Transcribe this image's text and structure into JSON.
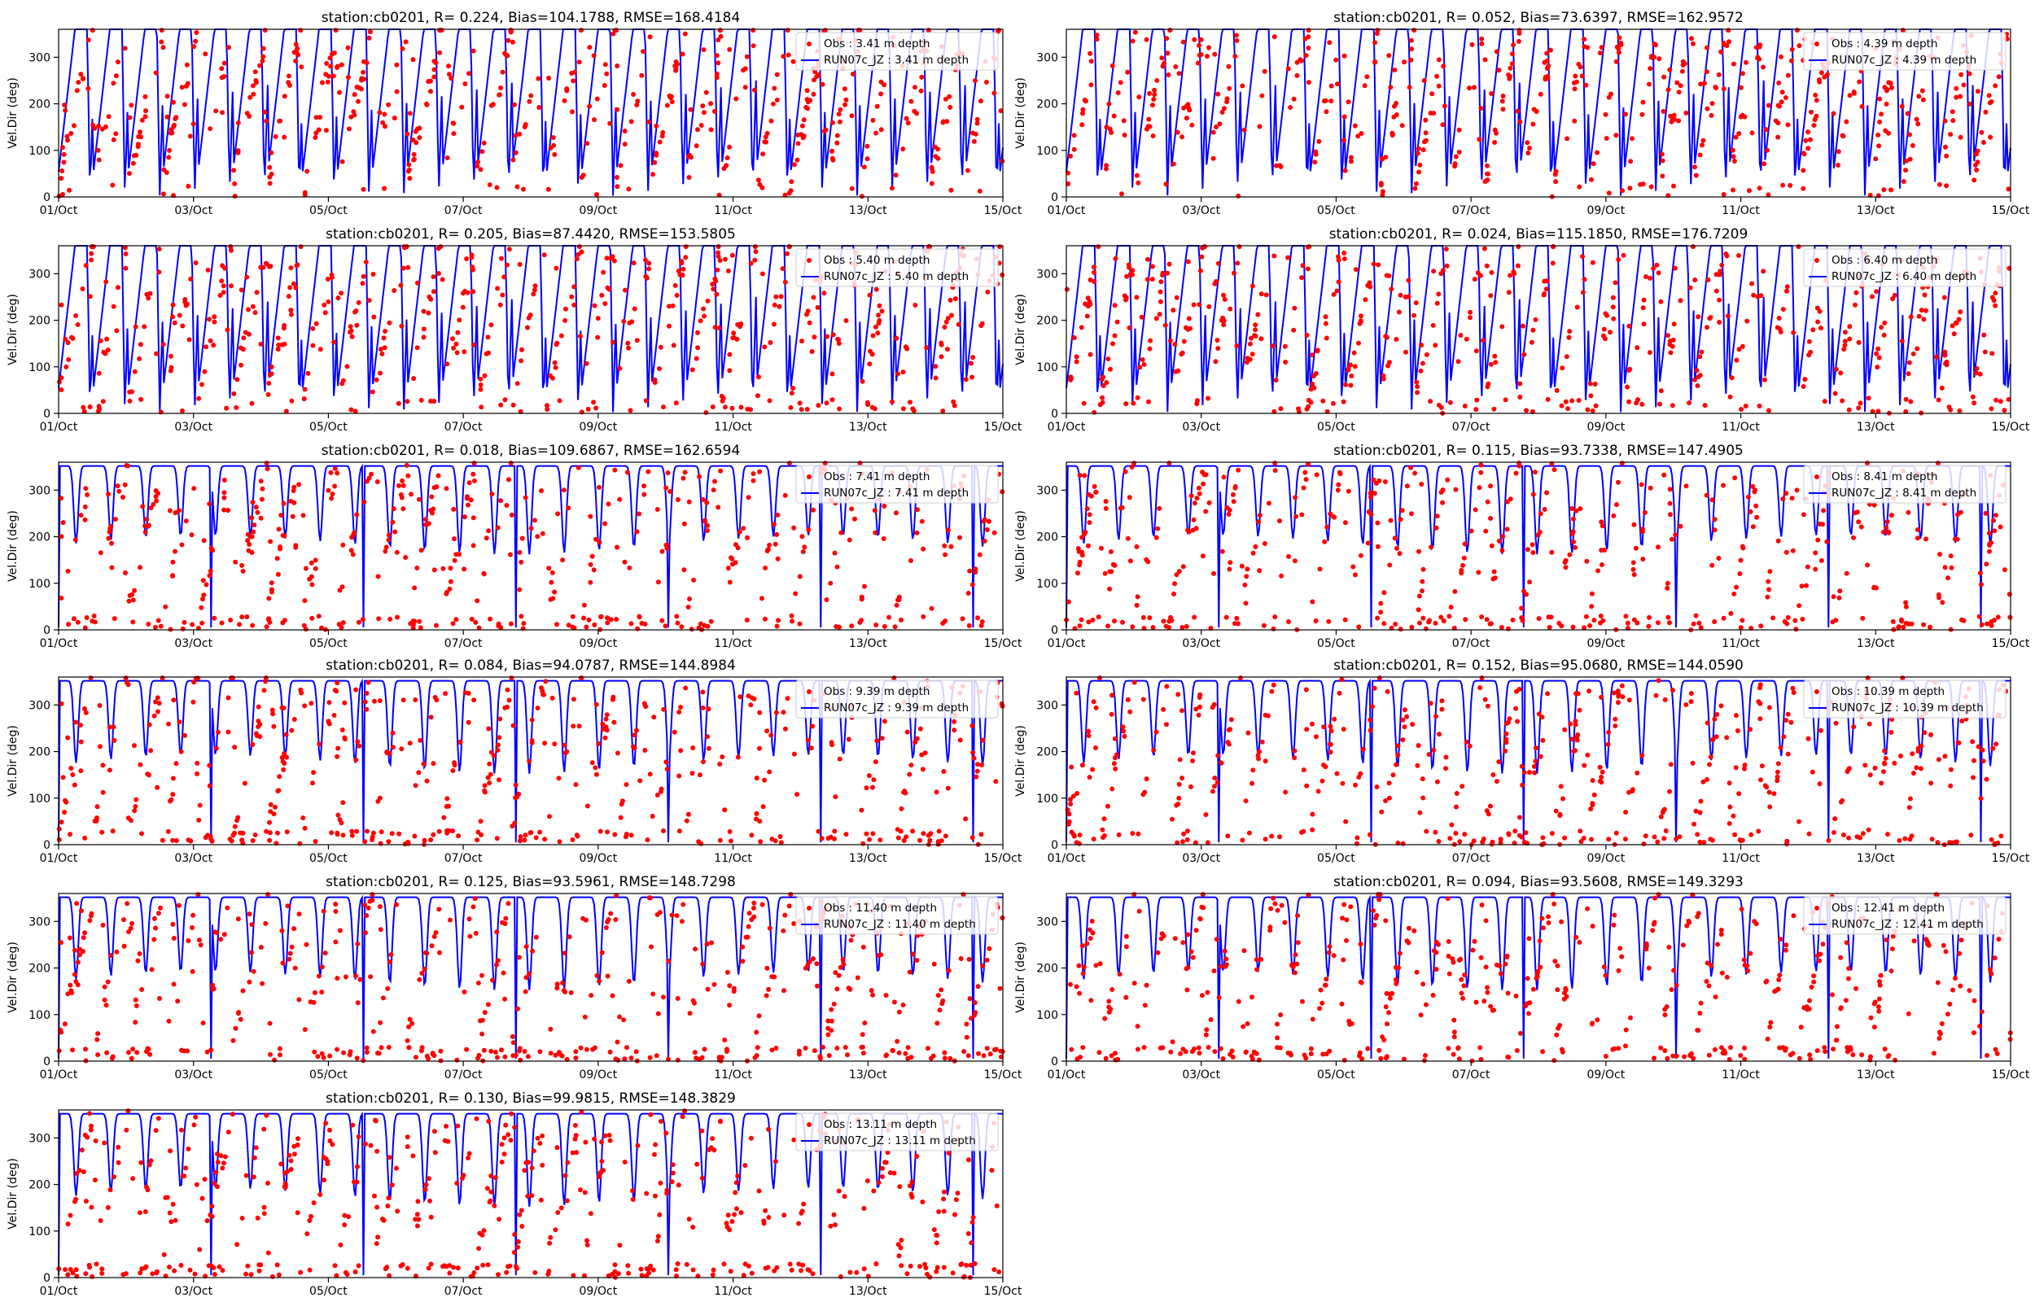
{
  "figure": {
    "ylabel": "Vel.Dir (deg)",
    "x_ticks": [
      "01/Oct",
      "03/Oct",
      "05/Oct",
      "07/Oct",
      "09/Oct",
      "11/Oct",
      "13/Oct",
      "15/Oct"
    ],
    "y_ticks": [
      "0",
      "100",
      "200",
      "300"
    ],
    "colors": {
      "obs": "#ff0000",
      "model": "#0000ff",
      "axes": "#000000",
      "legend_bg": "#ffffff"
    }
  },
  "chart_data": [
    {
      "type": "scatter+line",
      "title": "station:cb0201, R= 0.224, Bias=104.1788, RMSE=168.4184",
      "series": [
        {
          "name": "Obs : 3.41 m depth",
          "kind": "scatter",
          "color": "#ff0000"
        },
        {
          "name": "RUN07c_JZ : 3.41 m depth",
          "kind": "line",
          "color": "#0000ff"
        }
      ],
      "xlim": [
        "2021-10-01",
        "2021-10-15"
      ],
      "ylim": [
        0,
        360
      ],
      "depth": 3.41,
      "model_min": 0,
      "obs_bias": 0.7,
      "obs_low": 0.05
    },
    {
      "type": "scatter+line",
      "title": "station:cb0201, R= 0.052, Bias=73.6397, RMSE=162.9572",
      "series": [
        {
          "name": "Obs : 4.39 m depth",
          "kind": "scatter",
          "color": "#ff0000"
        },
        {
          "name": "RUN07c_JZ : 4.39 m depth",
          "kind": "line",
          "color": "#0000ff"
        }
      ],
      "xlim": [
        "2021-10-01",
        "2021-10-15"
      ],
      "ylim": [
        0,
        360
      ],
      "depth": 4.39,
      "model_min": 0,
      "obs_bias": 0.7,
      "obs_low": 0.05
    },
    {
      "type": "scatter+line",
      "title": "station:cb0201, R= 0.205, Bias=87.4420, RMSE=153.5805",
      "series": [
        {
          "name": "Obs : 5.40 m depth",
          "kind": "scatter",
          "color": "#ff0000"
        },
        {
          "name": "RUN07c_JZ : 5.40 m depth",
          "kind": "line",
          "color": "#0000ff"
        }
      ],
      "xlim": [
        "2021-10-01",
        "2021-10-15"
      ],
      "ylim": [
        0,
        360
      ],
      "depth": 5.4,
      "model_min": 0,
      "obs_bias": 0.65,
      "obs_low": 0.1
    },
    {
      "type": "scatter+line",
      "title": "station:cb0201, R= 0.024, Bias=115.1850, RMSE=176.7209",
      "series": [
        {
          "name": "Obs : 6.40 m depth",
          "kind": "scatter",
          "color": "#ff0000"
        },
        {
          "name": "RUN07c_JZ : 6.40 m depth",
          "kind": "line",
          "color": "#0000ff"
        }
      ],
      "xlim": [
        "2021-10-01",
        "2021-10-15"
      ],
      "ylim": [
        0,
        360
      ],
      "depth": 6.4,
      "model_min": 0,
      "obs_bias": 0.6,
      "obs_low": 0.15
    },
    {
      "type": "scatter+line",
      "title": "station:cb0201, R= 0.018, Bias=109.6867, RMSE=162.6594",
      "series": [
        {
          "name": "Obs : 7.41 m depth",
          "kind": "scatter",
          "color": "#ff0000"
        },
        {
          "name": "RUN07c_JZ : 7.41 m depth",
          "kind": "line",
          "color": "#0000ff"
        }
      ],
      "xlim": [
        "2021-10-01",
        "2021-10-15"
      ],
      "ylim": [
        0,
        360
      ],
      "depth": 7.41,
      "model_min": 190,
      "obs_bias": 0.5,
      "obs_low": 0.25
    },
    {
      "type": "scatter+line",
      "title": "station:cb0201, R= 0.115, Bias=93.7338, RMSE=147.4905",
      "series": [
        {
          "name": "Obs : 8.41 m depth",
          "kind": "scatter",
          "color": "#ff0000"
        },
        {
          "name": "RUN07c_JZ : 8.41 m depth",
          "kind": "line",
          "color": "#0000ff"
        }
      ],
      "xlim": [
        "2021-10-01",
        "2021-10-15"
      ],
      "ylim": [
        0,
        360
      ],
      "depth": 8.41,
      "model_min": 190,
      "obs_bias": 0.5,
      "obs_low": 0.25
    },
    {
      "type": "scatter+line",
      "title": "station:cb0201, R= 0.084, Bias=94.0787, RMSE=144.8984",
      "series": [
        {
          "name": "Obs : 9.39 m depth",
          "kind": "scatter",
          "color": "#ff0000"
        },
        {
          "name": "RUN07c_JZ : 9.39 m depth",
          "kind": "line",
          "color": "#0000ff"
        }
      ],
      "xlim": [
        "2021-10-01",
        "2021-10-15"
      ],
      "ylim": [
        0,
        360
      ],
      "depth": 9.39,
      "model_min": 180,
      "obs_bias": 0.5,
      "obs_low": 0.25
    },
    {
      "type": "scatter+line",
      "title": "station:cb0201, R= 0.152, Bias=95.0680, RMSE=144.0590",
      "series": [
        {
          "name": "Obs : 10.39 m depth",
          "kind": "scatter",
          "color": "#ff0000"
        },
        {
          "name": "RUN07c_JZ : 10.39 m depth",
          "kind": "line",
          "color": "#0000ff"
        }
      ],
      "xlim": [
        "2021-10-01",
        "2021-10-15"
      ],
      "ylim": [
        0,
        360
      ],
      "depth": 10.39,
      "model_min": 180,
      "obs_bias": 0.5,
      "obs_low": 0.25
    },
    {
      "type": "scatter+line",
      "title": "station:cb0201, R= 0.125, Bias=93.5961, RMSE=148.7298",
      "series": [
        {
          "name": "Obs : 11.40 m depth",
          "kind": "scatter",
          "color": "#ff0000"
        },
        {
          "name": "RUN07c_JZ : 11.40 m depth",
          "kind": "line",
          "color": "#0000ff"
        }
      ],
      "xlim": [
        "2021-10-01",
        "2021-10-15"
      ],
      "ylim": [
        0,
        360
      ],
      "depth": 11.4,
      "model_min": 180,
      "obs_bias": 0.5,
      "obs_low": 0.25
    },
    {
      "type": "scatter+line",
      "title": "station:cb0201, R= 0.094, Bias=93.5608, RMSE=149.3293",
      "series": [
        {
          "name": "Obs : 12.41 m depth",
          "kind": "scatter",
          "color": "#ff0000"
        },
        {
          "name": "RUN07c_JZ : 12.41 m depth",
          "kind": "line",
          "color": "#0000ff"
        }
      ],
      "xlim": [
        "2021-10-01",
        "2021-10-15"
      ],
      "ylim": [
        0,
        360
      ],
      "depth": 12.41,
      "model_min": 180,
      "obs_bias": 0.5,
      "obs_low": 0.25
    },
    {
      "type": "scatter+line",
      "title": "station:cb0201, R= 0.130, Bias=99.9815, RMSE=148.3829",
      "series": [
        {
          "name": "Obs : 13.11 m depth",
          "kind": "scatter",
          "color": "#ff0000"
        },
        {
          "name": "RUN07c_JZ : 13.11 m depth",
          "kind": "line",
          "color": "#0000ff"
        }
      ],
      "xlim": [
        "2021-10-01",
        "2021-10-15"
      ],
      "ylim": [
        0,
        360
      ],
      "depth": 13.11,
      "model_min": 180,
      "obs_bias": 0.5,
      "obs_low": 0.25
    }
  ]
}
